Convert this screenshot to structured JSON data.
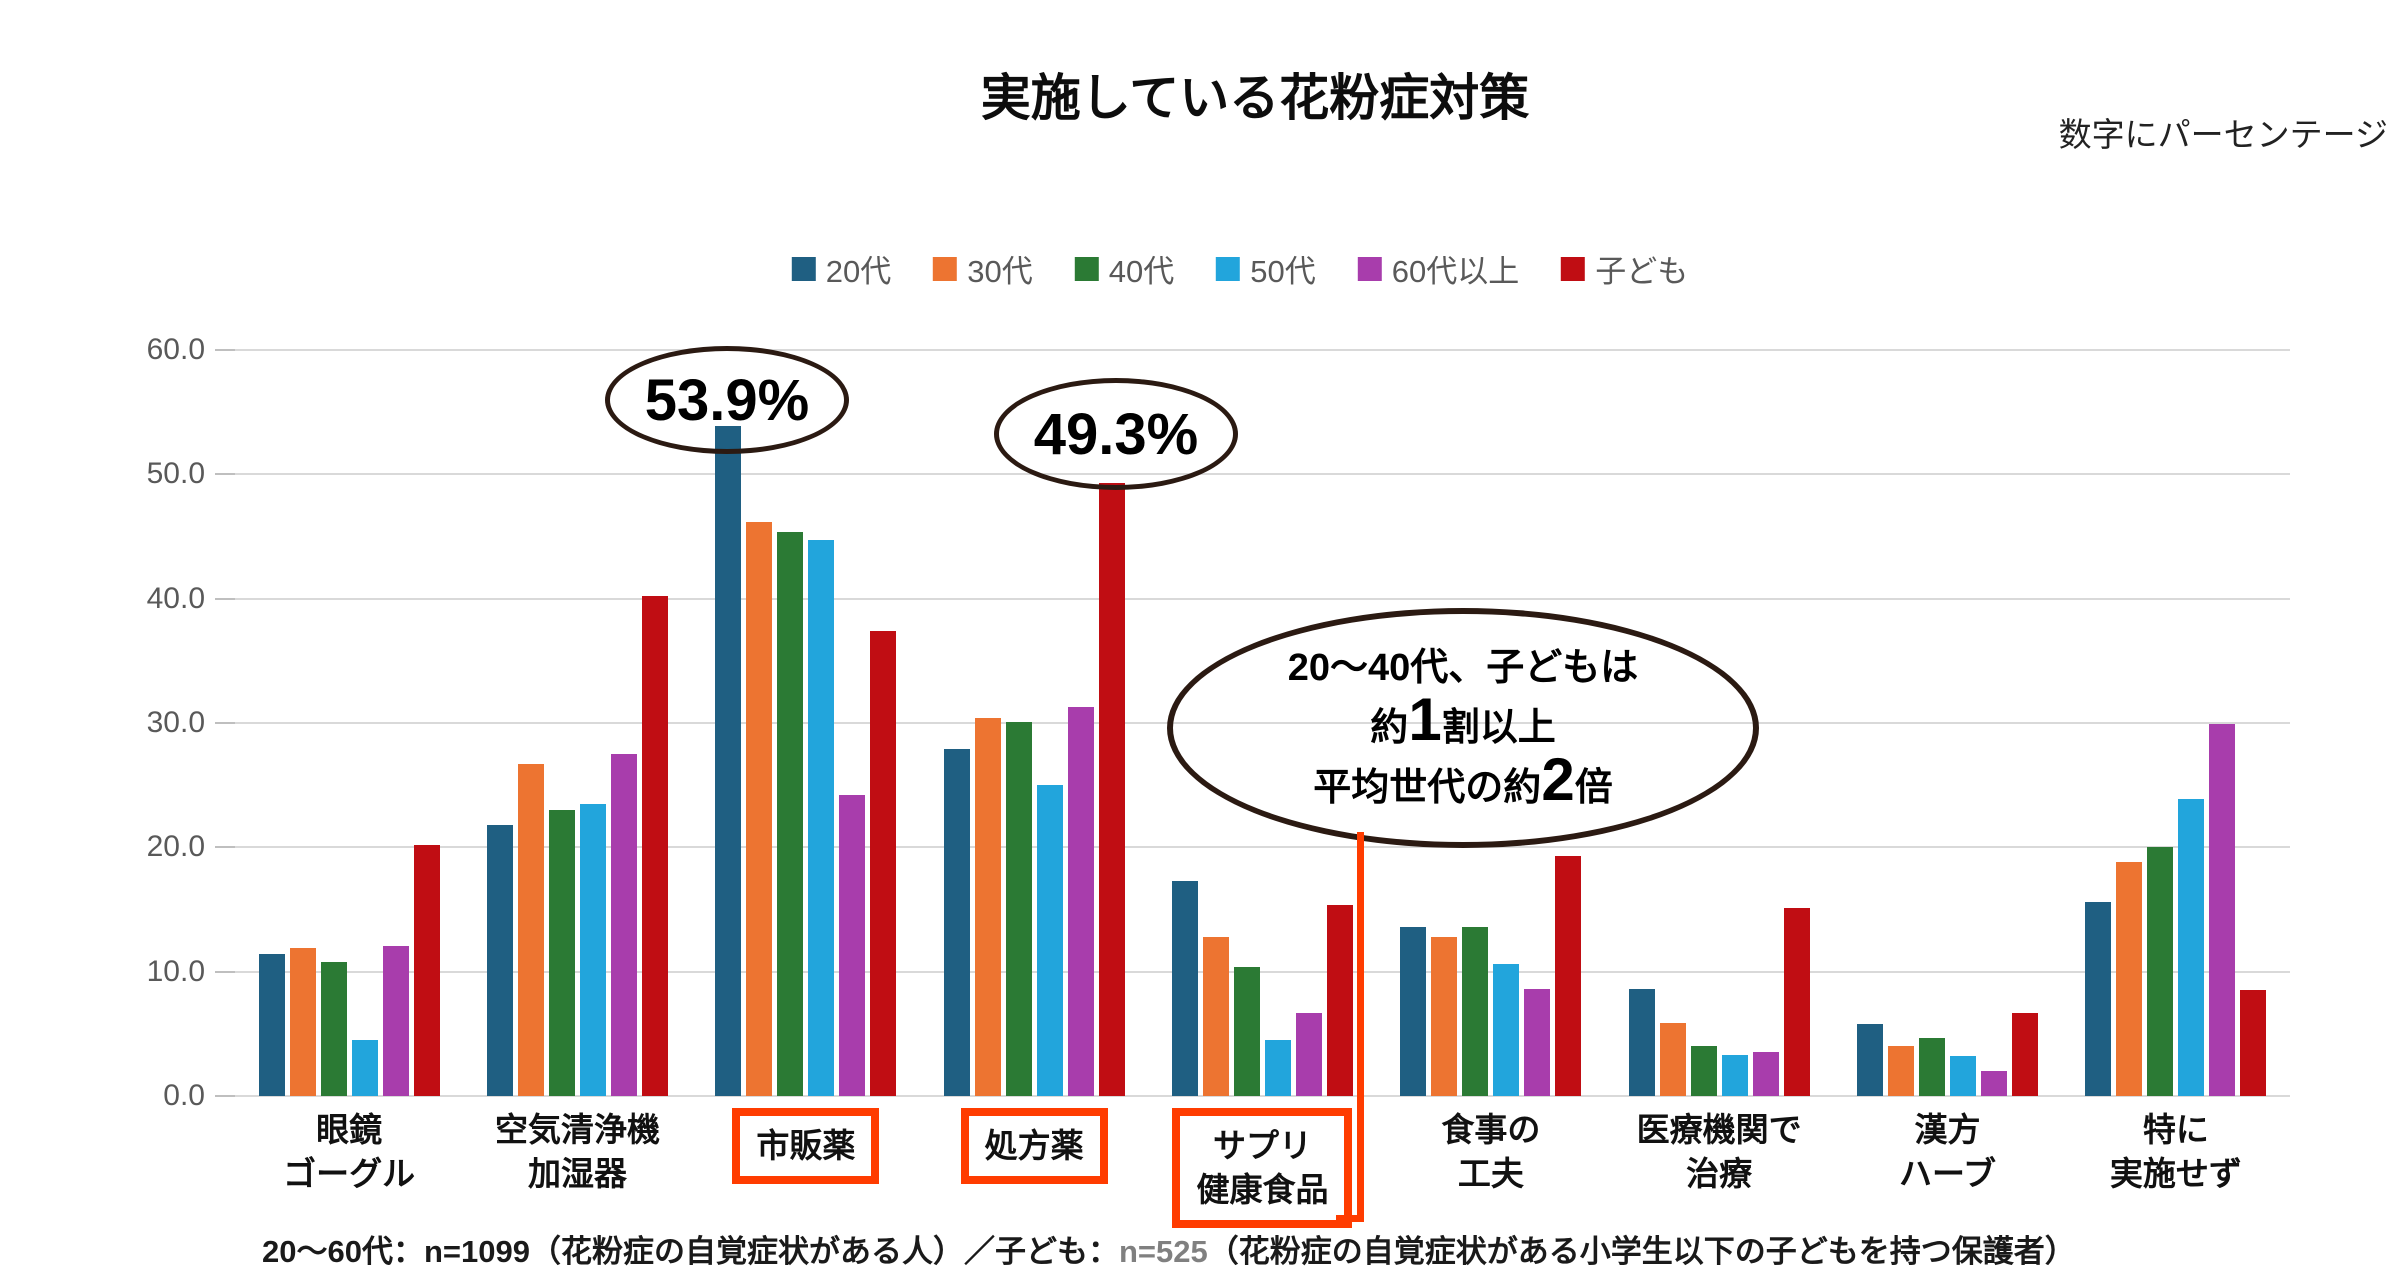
{
  "title": "実施している花粉症対策",
  "unit_note": "数字にパーセンテージ",
  "chart_data": {
    "type": "bar",
    "title": "実施している花粉症対策",
    "categories": [
      [
        "眼鏡",
        "ゴーグル"
      ],
      [
        "空気清浄機",
        "加湿器"
      ],
      [
        "市販薬"
      ],
      [
        "処方薬"
      ],
      [
        "サプリ",
        "健康食品"
      ],
      [
        "食事の",
        "工夫"
      ],
      [
        "医療機関で",
        "治療"
      ],
      [
        "漢方",
        "ハーブ"
      ],
      [
        "特に",
        "実施せず"
      ]
    ],
    "boxed_categories": [
      2,
      3,
      4
    ],
    "series": [
      {
        "name": "20代",
        "color": "#1F5F82",
        "values": [
          11.4,
          21.8,
          53.9,
          27.9,
          17.3,
          13.6,
          8.6,
          5.8,
          15.6
        ]
      },
      {
        "name": "30代",
        "color": "#ED7431",
        "values": [
          11.9,
          26.7,
          46.2,
          30.4,
          12.8,
          12.8,
          5.9,
          4.0,
          18.8
        ]
      },
      {
        "name": "40代",
        "color": "#2B7A34",
        "values": [
          10.8,
          23.0,
          45.4,
          30.1,
          10.4,
          13.6,
          4.0,
          4.7,
          20.0
        ]
      },
      {
        "name": "50代",
        "color": "#22A5DC",
        "values": [
          4.5,
          23.5,
          44.7,
          25.0,
          4.5,
          10.6,
          3.3,
          3.2,
          23.9
        ]
      },
      {
        "name": "60代以上",
        "color": "#A83DAC",
        "values": [
          12.1,
          27.5,
          24.2,
          31.3,
          6.7,
          8.6,
          3.5,
          2.0,
          29.9
        ]
      },
      {
        "name": "子ども",
        "color": "#C00D13",
        "values": [
          20.2,
          40.2,
          37.4,
          49.3,
          15.4,
          19.3,
          15.1,
          6.7,
          8.5
        ]
      }
    ],
    "ylim": [
      0,
      60
    ],
    "yticks": [
      "0.0",
      "10.0",
      "20.0",
      "30.0",
      "40.0",
      "50.0",
      "60.0"
    ],
    "grid": "horizontal",
    "legend_position": "top-center"
  },
  "annotations": {
    "shihan_pct": "53.9%",
    "shoho_pct": "49.3%",
    "supplement": {
      "line1": "20〜40代、子どもは",
      "line2_pre": "約",
      "line2_big": "1",
      "line2_post": "割以上",
      "line3_pre": "平均世代の約",
      "line3_big": "2",
      "line3_post": "倍"
    }
  },
  "colors": {
    "highlight_box": "#FF3C00",
    "connector": "#FF3C00",
    "ellipse_stroke": "#2B1A12",
    "gridline": "#D9D9D9",
    "axis_text": "#595959"
  },
  "footnote": {
    "part1": "20〜60代：n=1099（花粉症の自覚症状がある人）／子ども：",
    "part2": "n=525",
    "part3": "（花粉症の自覚症状がある小学生以下の子どもを持つ保護者）"
  }
}
